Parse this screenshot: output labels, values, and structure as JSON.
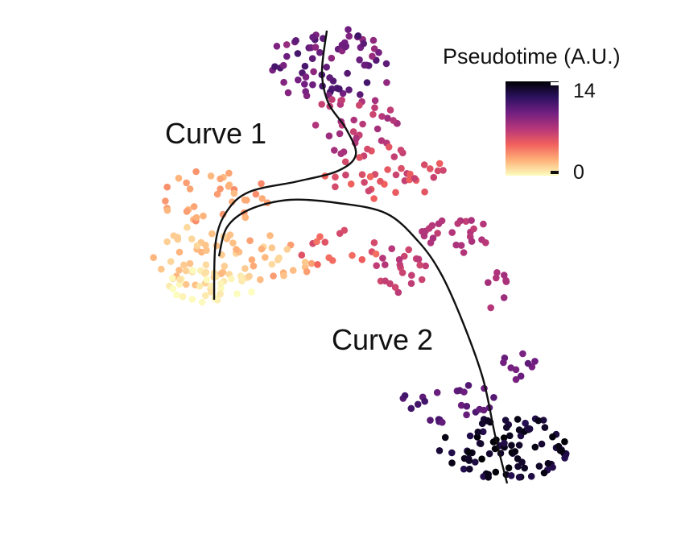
{
  "chart_data": {
    "type": "scatter",
    "title": "",
    "xlabel": "",
    "ylabel": "",
    "xlim": [
      0,
      846
    ],
    "ylim": [
      0,
      664
    ],
    "grid": false,
    "legend": {
      "title": "Pseudotime (A.U.)",
      "placement": "top-right",
      "colormap": [
        "#fcfdbf",
        "#feb078",
        "#f1605d",
        "#b5367a",
        "#721f81",
        "#2c115f",
        "#000004"
      ],
      "min": 0,
      "max": 14,
      "tick_labels": [
        "14",
        "0"
      ]
    },
    "annotations": [
      "Curve 1",
      "Curve 2"
    ],
    "curves": [
      {
        "name": "Curve 1",
        "points": [
          [
            406,
            38
          ],
          [
            400,
            90
          ],
          [
            408,
            128
          ],
          [
            430,
            160
          ],
          [
            442,
            192
          ],
          [
            420,
            212
          ],
          [
            370,
            225
          ],
          [
            310,
            238
          ],
          [
            282,
            262
          ],
          [
            268,
            300
          ],
          [
            266,
            372
          ]
        ]
      },
      {
        "name": "Curve 2",
        "points": [
          [
            272,
            318
          ],
          [
            282,
            282
          ],
          [
            310,
            260
          ],
          [
            360,
            248
          ],
          [
            420,
            252
          ],
          [
            480,
            265
          ],
          [
            520,
            300
          ],
          [
            548,
            340
          ],
          [
            575,
            400
          ],
          [
            600,
            470
          ],
          [
            615,
            540
          ],
          [
            630,
            600
          ]
        ]
      }
    ],
    "clusters": [
      {
        "cx": 410,
        "cy": 80,
        "rx": 85,
        "ry": 45,
        "n": 70,
        "t": [
          8,
          11
        ]
      },
      {
        "cx": 440,
        "cy": 155,
        "rx": 60,
        "ry": 38,
        "n": 35,
        "t": [
          6,
          8
        ]
      },
      {
        "cx": 480,
        "cy": 215,
        "rx": 80,
        "ry": 35,
        "n": 40,
        "t": [
          4.5,
          6.5
        ]
      },
      {
        "cx": 265,
        "cy": 245,
        "rx": 70,
        "ry": 35,
        "n": 35,
        "t": [
          2,
          3.5
        ]
      },
      {
        "cx": 245,
        "cy": 315,
        "rx": 55,
        "ry": 40,
        "n": 40,
        "t": [
          0.8,
          2.2
        ]
      },
      {
        "cx": 260,
        "cy": 355,
        "rx": 60,
        "ry": 22,
        "n": 35,
        "t": [
          0,
          1
        ]
      },
      {
        "cx": 340,
        "cy": 320,
        "rx": 60,
        "ry": 30,
        "n": 25,
        "t": [
          1,
          3
        ]
      },
      {
        "cx": 420,
        "cy": 310,
        "rx": 55,
        "ry": 25,
        "n": 15,
        "t": [
          4,
          6
        ]
      },
      {
        "cx": 495,
        "cy": 335,
        "rx": 35,
        "ry": 28,
        "n": 22,
        "t": [
          6,
          7
        ]
      },
      {
        "cx": 565,
        "cy": 290,
        "rx": 45,
        "ry": 25,
        "n": 25,
        "t": [
          6.5,
          7.5
        ]
      },
      {
        "cx": 620,
        "cy": 360,
        "rx": 15,
        "ry": 35,
        "n": 8,
        "t": [
          7,
          8
        ]
      },
      {
        "cx": 645,
        "cy": 455,
        "rx": 22,
        "ry": 20,
        "n": 10,
        "t": [
          9,
          10
        ]
      },
      {
        "cx": 560,
        "cy": 500,
        "rx": 65,
        "ry": 25,
        "n": 25,
        "t": [
          9.5,
          11
        ]
      },
      {
        "cx": 630,
        "cy": 555,
        "rx": 85,
        "ry": 40,
        "n": 90,
        "t": [
          12,
          14
        ]
      }
    ]
  }
}
